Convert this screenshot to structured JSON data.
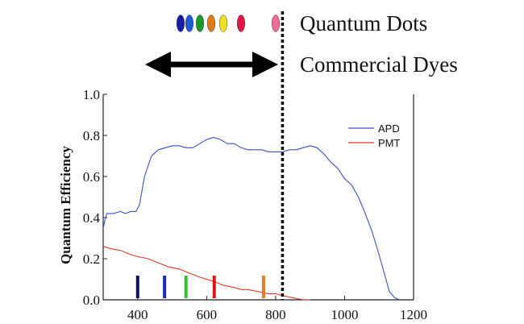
{
  "header": {
    "quantum_dots_label": "Quantum Dots",
    "commercial_dyes_label": "Commercial Dyes",
    "quantum_dot_colors": [
      "#1a1aa8",
      "#1f5ad6",
      "#1a9a2a",
      "#e07a18",
      "#f0e020",
      "#e01848",
      "#f06a9a"
    ]
  },
  "chart_data": {
    "type": "line",
    "title": "",
    "xlabel": "",
    "ylabel": "Quantum Efficiency",
    "xlim": [
      300,
      1200
    ],
    "ylim": [
      0.0,
      1.0
    ],
    "x_ticks": [
      400,
      600,
      800,
      1000,
      1200
    ],
    "y_ticks": [
      0.0,
      0.2,
      0.4,
      0.6,
      0.8,
      1.0
    ],
    "x_tick_labels": [
      "400",
      "600",
      "800",
      "1000",
      "1200"
    ],
    "y_tick_labels": [
      "0.0",
      "0.2",
      "0.4",
      "0.6",
      "0.8",
      "1.0"
    ],
    "grid": false,
    "legend_position": "top-right",
    "series": [
      {
        "name": "APD",
        "color": "#3b4fc0",
        "x": [
          300,
          310,
          330,
          350,
          365,
          380,
          395,
          405,
          420,
          440,
          460,
          480,
          500,
          520,
          540,
          560,
          580,
          600,
          620,
          640,
          660,
          680,
          700,
          720,
          740,
          760,
          780,
          800,
          820,
          840,
          860,
          880,
          900,
          920,
          940,
          960,
          980,
          1000,
          1020,
          1040,
          1060,
          1080,
          1100,
          1115,
          1130,
          1145,
          1160
        ],
        "y": [
          0.35,
          0.42,
          0.42,
          0.43,
          0.42,
          0.43,
          0.43,
          0.46,
          0.6,
          0.7,
          0.73,
          0.74,
          0.75,
          0.75,
          0.74,
          0.74,
          0.76,
          0.78,
          0.79,
          0.78,
          0.76,
          0.76,
          0.74,
          0.73,
          0.73,
          0.73,
          0.72,
          0.72,
          0.72,
          0.73,
          0.73,
          0.74,
          0.75,
          0.74,
          0.71,
          0.67,
          0.64,
          0.59,
          0.56,
          0.5,
          0.42,
          0.33,
          0.22,
          0.13,
          0.04,
          0.01,
          0.0
        ]
      },
      {
        "name": "PMT",
        "color": "#e0392b",
        "x": [
          300,
          320,
          350,
          380,
          400,
          430,
          460,
          490,
          520,
          550,
          580,
          600,
          620,
          650,
          680,
          700,
          720,
          750,
          780,
          800,
          820,
          850,
          880,
          900
        ],
        "y": [
          0.26,
          0.25,
          0.24,
          0.22,
          0.21,
          0.2,
          0.18,
          0.16,
          0.15,
          0.13,
          0.11,
          0.1,
          0.09,
          0.07,
          0.06,
          0.05,
          0.05,
          0.04,
          0.03,
          0.03,
          0.02,
          0.01,
          0.0,
          0.0
        ]
      }
    ],
    "dye_markers": [
      {
        "x": 400,
        "color": "#101060"
      },
      {
        "x": 478,
        "color": "#1a2ab8"
      },
      {
        "x": 540,
        "color": "#35c030"
      },
      {
        "x": 622,
        "color": "#d81818"
      },
      {
        "x": 765,
        "color": "#e87a20"
      }
    ],
    "cutoff_x": 820
  }
}
